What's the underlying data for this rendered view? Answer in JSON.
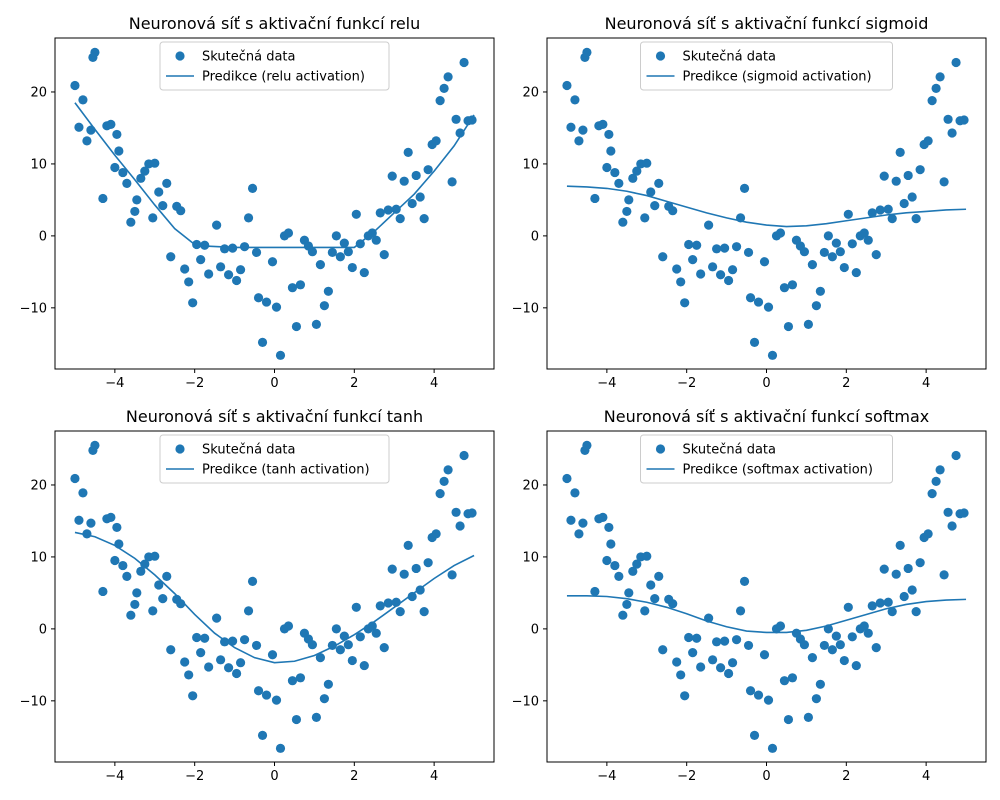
{
  "figure": {
    "colors": {
      "accent": "#1f77b4",
      "axes": "#000000",
      "legend_border": "#cccccc"
    }
  },
  "chart_data": [
    {
      "type": "scatter",
      "title": "Neuronová síť s aktivační funkcí relu",
      "xlim": [
        -5.5,
        5.5
      ],
      "ylim": [
        -18.5,
        27.5
      ],
      "xticks": [
        -4,
        -2,
        0,
        2,
        4
      ],
      "yticks": [
        -10,
        0,
        10,
        20
      ],
      "xtick_labels": [
        "−4",
        "−2",
        "0",
        "2",
        "4"
      ],
      "ytick_labels": [
        "−10",
        "0",
        "10",
        "20"
      ],
      "legend": {
        "placement": "upper-center",
        "scatter_label": "Skutečná data",
        "line_label": "Predikce (relu activation)"
      },
      "prediction": {
        "x": [
          -5.0,
          -4.5,
          -4.0,
          -3.5,
          -3.0,
          -2.5,
          -2.0,
          -1.8,
          -1.0,
          0.0,
          1.0,
          2.0,
          2.5,
          3.0,
          3.5,
          4.0,
          4.5,
          5.0
        ],
        "y": [
          18.5,
          14.8,
          11.2,
          7.8,
          4.3,
          1.0,
          -1.2,
          -1.4,
          -1.6,
          -1.6,
          -1.6,
          -1.6,
          0.6,
          3.2,
          5.8,
          9.0,
          12.5,
          16.8
        ]
      }
    },
    {
      "type": "scatter",
      "title": "Neuronová síť s aktivační funkcí sigmoid",
      "xlim": [
        -5.5,
        5.5
      ],
      "ylim": [
        -18.5,
        27.5
      ],
      "xticks": [
        -4,
        -2,
        0,
        2,
        4
      ],
      "yticks": [
        -10,
        0,
        10,
        20
      ],
      "xtick_labels": [
        "−4",
        "−2",
        "0",
        "2",
        "4"
      ],
      "ytick_labels": [
        "−10",
        "0",
        "10",
        "20"
      ],
      "legend": {
        "placement": "upper-center",
        "scatter_label": "Skutečná data",
        "line_label": "Predikce (sigmoid activation)"
      },
      "prediction": {
        "x": [
          -5.0,
          -4.5,
          -4.0,
          -3.5,
          -3.0,
          -2.5,
          -2.0,
          -1.5,
          -1.0,
          -0.5,
          0.0,
          0.5,
          1.0,
          1.5,
          2.0,
          2.5,
          3.0,
          3.5,
          4.0,
          4.5,
          5.0
        ],
        "y": [
          6.9,
          6.8,
          6.6,
          6.2,
          5.6,
          4.8,
          4.0,
          3.2,
          2.5,
          1.9,
          1.5,
          1.3,
          1.4,
          1.7,
          2.1,
          2.5,
          2.9,
          3.2,
          3.4,
          3.6,
          3.7
        ]
      }
    },
    {
      "type": "scatter",
      "title": "Neuronová síť s aktivační funkcí tanh",
      "xlim": [
        -5.5,
        5.5
      ],
      "ylim": [
        -18.5,
        27.5
      ],
      "xticks": [
        -4,
        -2,
        0,
        2,
        4
      ],
      "yticks": [
        -10,
        0,
        10,
        20
      ],
      "xtick_labels": [
        "−4",
        "−2",
        "0",
        "2",
        "4"
      ],
      "ytick_labels": [
        "−10",
        "0",
        "10",
        "20"
      ],
      "legend": {
        "placement": "upper-center",
        "scatter_label": "Skutečná data",
        "line_label": "Predikce (tanh activation)"
      },
      "prediction": {
        "x": [
          -5.0,
          -4.5,
          -4.0,
          -3.5,
          -3.0,
          -2.5,
          -2.0,
          -1.5,
          -1.0,
          -0.5,
          0.0,
          0.5,
          1.0,
          1.5,
          2.0,
          2.5,
          3.0,
          3.5,
          4.0,
          4.5,
          5.0
        ],
        "y": [
          13.4,
          12.8,
          11.6,
          9.8,
          7.5,
          4.9,
          2.0,
          -0.6,
          -2.6,
          -4.0,
          -4.7,
          -4.5,
          -3.7,
          -2.4,
          -0.8,
          1.0,
          3.0,
          5.0,
          7.0,
          8.8,
          10.2
        ]
      }
    },
    {
      "type": "scatter",
      "title": "Neuronová síť s aktivační funkcí softmax",
      "xlim": [
        -5.5,
        5.5
      ],
      "ylim": [
        -18.5,
        27.5
      ],
      "xticks": [
        -4,
        -2,
        0,
        2,
        4
      ],
      "yticks": [
        -10,
        0,
        10,
        20
      ],
      "xtick_labels": [
        "−4",
        "−2",
        "0",
        "2",
        "4"
      ],
      "ytick_labels": [
        "−10",
        "0",
        "10",
        "20"
      ],
      "legend": {
        "placement": "upper-center",
        "scatter_label": "Skutečná data",
        "line_label": "Predikce (softmax activation)"
      },
      "prediction": {
        "x": [
          -5.0,
          -4.5,
          -4.0,
          -3.5,
          -3.0,
          -2.5,
          -2.0,
          -1.5,
          -1.0,
          -0.5,
          0.0,
          0.5,
          1.0,
          1.5,
          2.0,
          2.5,
          3.0,
          3.5,
          4.0,
          4.5,
          5.0
        ],
        "y": [
          4.6,
          4.6,
          4.5,
          4.2,
          3.7,
          3.0,
          2.1,
          1.1,
          0.3,
          -0.3,
          -0.5,
          -0.5,
          -0.2,
          0.4,
          1.2,
          2.0,
          2.8,
          3.4,
          3.8,
          4.0,
          4.1
        ]
      }
    }
  ],
  "scatter_data": {
    "x": [
      -5.0,
      -4.9,
      -4.8,
      -4.7,
      -4.6,
      -4.55,
      -4.5,
      -4.3,
      -4.2,
      -4.1,
      -4.0,
      -3.95,
      -3.9,
      -3.8,
      -3.7,
      -3.6,
      -3.5,
      -3.45,
      -3.35,
      -3.25,
      -3.15,
      -3.05,
      -3.0,
      -2.9,
      -2.8,
      -2.7,
      -2.6,
      -2.45,
      -2.35,
      -2.25,
      -2.15,
      -2.05,
      -1.95,
      -1.85,
      -1.75,
      -1.65,
      -1.45,
      -1.35,
      -1.25,
      -1.15,
      -1.05,
      -0.95,
      -0.85,
      -0.75,
      -0.65,
      -0.55,
      -0.45,
      -0.4,
      -0.3,
      -0.2,
      -0.05,
      0.05,
      0.15,
      0.25,
      0.35,
      0.45,
      0.55,
      0.65,
      0.75,
      0.85,
      0.95,
      1.05,
      1.15,
      1.25,
      1.35,
      1.45,
      1.55,
      1.65,
      1.75,
      1.85,
      1.95,
      2.05,
      2.15,
      2.25,
      2.35,
      2.45,
      2.55,
      2.65,
      2.75,
      2.85,
      2.95,
      3.05,
      3.15,
      3.25,
      3.35,
      3.45,
      3.55,
      3.65,
      3.75,
      3.85,
      3.95,
      4.05,
      4.15,
      4.25,
      4.35,
      4.45,
      4.55,
      4.65,
      4.75,
      4.85,
      4.95
    ],
    "y": [
      20.9,
      15.1,
      18.9,
      13.2,
      14.7,
      24.8,
      25.5,
      5.2,
      15.3,
      15.5,
      9.5,
      14.1,
      11.8,
      8.8,
      7.3,
      1.9,
      3.4,
      5.0,
      8.0,
      9.0,
      10.0,
      2.5,
      10.1,
      6.1,
      4.2,
      7.3,
      -2.9,
      4.1,
      3.5,
      -4.6,
      -6.4,
      -9.3,
      -1.2,
      -3.3,
      -1.3,
      -5.3,
      1.5,
      -4.3,
      -1.8,
      -5.4,
      -1.7,
      -6.2,
      -4.7,
      -1.5,
      2.5,
      6.6,
      -2.3,
      -8.6,
      -14.8,
      -9.2,
      -3.6,
      -9.9,
      -16.6,
      0.0,
      0.4,
      -7.2,
      -12.6,
      -6.8,
      -0.6,
      -1.4,
      -2.2,
      -12.3,
      -4.0,
      -9.7,
      -7.7,
      -2.3,
      0.0,
      -2.9,
      -1.0,
      -2.2,
      -4.4,
      3.0,
      -1.1,
      -5.1,
      0.0,
      0.4,
      -0.6,
      3.2,
      -2.6,
      3.6,
      8.3,
      3.7,
      2.4,
      7.6,
      11.6,
      4.5,
      8.4,
      5.4,
      2.4,
      9.2,
      12.7,
      13.2,
      18.8,
      20.5,
      22.1,
      7.5,
      16.2,
      14.3,
      24.1,
      16.0,
      16.1
    ]
  }
}
